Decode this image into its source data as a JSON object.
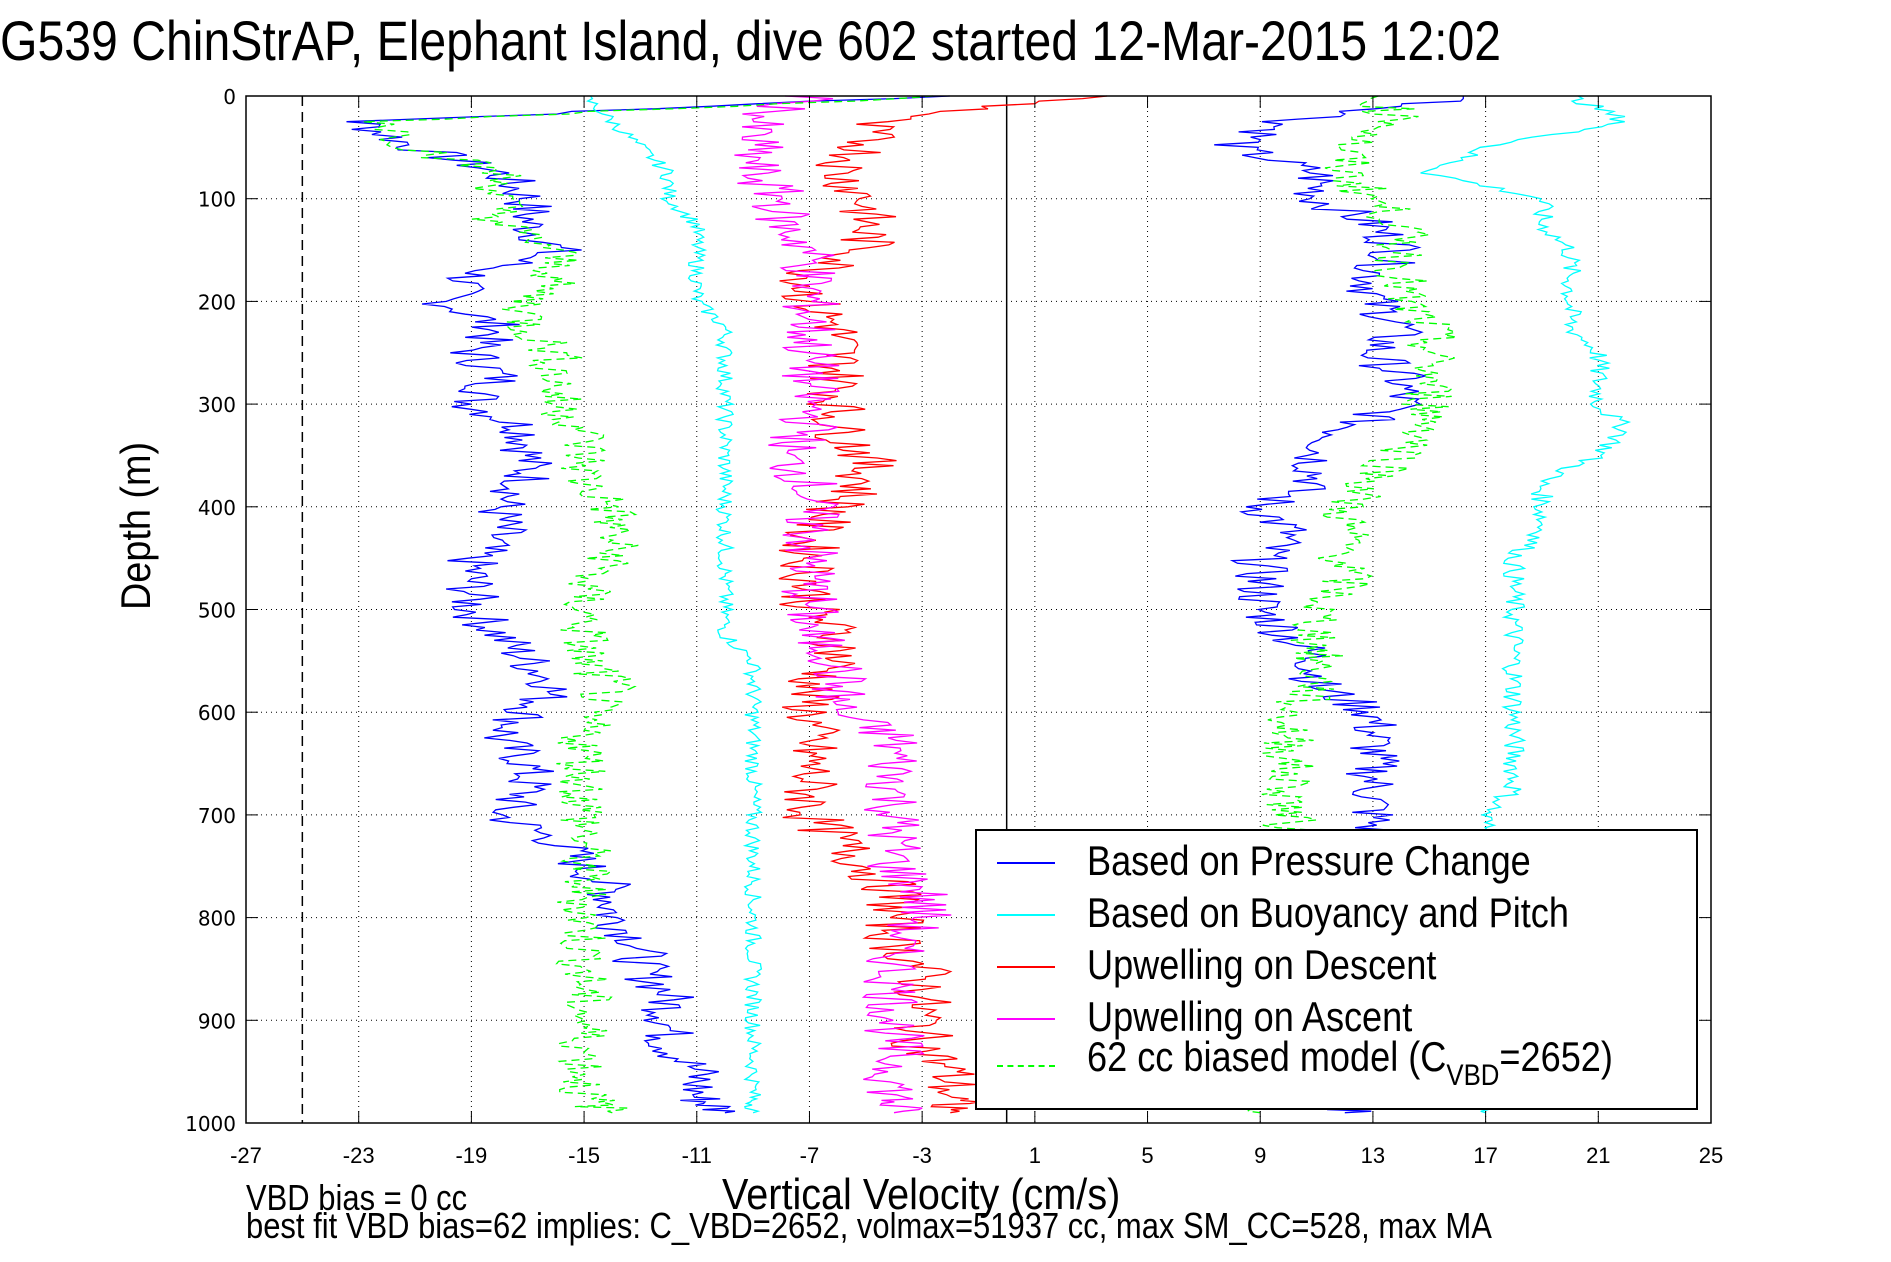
{
  "chart_data": {
    "type": "line",
    "title": "G539 ChinStrAP, Elephant Island, dive 602 started 12-Mar-2015 12:02",
    "xlabel": "Vertical Velocity (cm/s)",
    "ylabel": "Depth (m)",
    "xlim": [
      -27,
      25
    ],
    "ylim": [
      0,
      1000
    ],
    "y_reversed": true,
    "grid": true,
    "xticks": [
      -27,
      -23,
      -19,
      -15,
      -11,
      -7,
      -3,
      1,
      5,
      9,
      13,
      17,
      21,
      25
    ],
    "yticks": [
      0,
      100,
      200,
      300,
      400,
      500,
      600,
      700,
      800,
      900,
      1000
    ],
    "reference_lines": [
      {
        "name": "zero-velocity",
        "x": 0,
        "style": "solid"
      },
      {
        "name": "target-velocity",
        "x": -25,
        "style": "dashed"
      }
    ],
    "legend_position": "bottom-right",
    "depth": [
      0,
      25,
      50,
      75,
      100,
      125,
      150,
      175,
      200,
      225,
      250,
      275,
      300,
      325,
      350,
      375,
      400,
      425,
      450,
      475,
      500,
      525,
      550,
      575,
      600,
      625,
      650,
      675,
      700,
      725,
      750,
      775,
      800,
      825,
      850,
      875,
      900,
      925,
      950,
      975,
      990
    ],
    "series": [
      {
        "name": "Based on Pressure Change",
        "color": "#0000ff",
        "style": "solid",
        "descent": [
          -2,
          -23,
          -21,
          -18,
          -17,
          -17,
          -16,
          -19,
          -20,
          -18,
          -19,
          -18,
          -19,
          -17,
          -17,
          -17,
          -18,
          -18,
          -19,
          -19,
          -19,
          -18,
          -17,
          -16,
          -17,
          -18,
          -17,
          -17,
          -18,
          -16,
          -15,
          -14,
          -14,
          -13,
          -13,
          -12,
          -12,
          -12,
          -11,
          -11,
          -10
        ],
        "ascent": [
          17,
          10,
          8,
          11,
          11,
          13,
          14,
          13,
          13,
          14,
          13,
          14,
          14,
          12,
          11,
          11,
          9,
          10,
          9,
          9,
          9,
          10,
          11,
          11,
          13,
          13,
          13,
          13,
          13,
          13,
          13,
          13,
          13,
          13,
          13,
          13,
          13,
          13,
          13,
          13,
          12
        ]
      },
      {
        "name": "Based on Buoyancy and Pitch",
        "color": "#00ffff",
        "style": "solid",
        "descent": [
          -15,
          -14,
          -13,
          -12,
          -12,
          -11,
          -11,
          -11,
          -11,
          -10,
          -10,
          -10,
          -10,
          -10,
          -10,
          -10,
          -10,
          -10,
          -10,
          -10,
          -10,
          -10,
          -9,
          -9,
          -9,
          -9,
          -9,
          -9,
          -9,
          -9,
          -9,
          -9,
          -9,
          -9,
          -9,
          -9,
          -9,
          -9,
          -9,
          -9,
          -9
        ],
        "ascent": [
          20,
          22,
          17,
          15,
          19,
          19,
          20,
          20,
          20,
          20,
          21,
          21,
          21,
          22,
          21,
          19,
          19,
          19,
          18,
          18,
          18,
          18,
          18,
          18,
          18,
          18,
          18,
          18,
          17,
          17,
          17,
          17,
          17,
          17,
          17,
          17,
          17,
          17,
          17,
          17,
          17
        ]
      },
      {
        "name": "Upwelling on Descent",
        "color": "#ff0000",
        "style": "solid",
        "values": [
          3,
          -5,
          -5,
          -6,
          -5,
          -5,
          -5,
          -7,
          -7,
          -6,
          -6,
          -6,
          -6,
          -6,
          -5,
          -5,
          -6,
          -7,
          -7,
          -7,
          -7,
          -6,
          -6,
          -7,
          -7,
          -7,
          -7,
          -7,
          -7,
          -6,
          -5,
          -4,
          -4,
          -4,
          -3,
          -3,
          -3,
          -3,
          -2,
          -2,
          -2
        ]
      },
      {
        "name": "Upwelling on Ascent",
        "color": "#ff00ff",
        "style": "solid",
        "values": [
          -7,
          -9,
          -9,
          -9,
          -8,
          -8,
          -7,
          -7,
          -7,
          -7,
          -7,
          -7,
          -7,
          -7,
          -8,
          -7,
          -7,
          -7,
          -7,
          -7,
          -7,
          -7,
          -6,
          -6,
          -6,
          -4,
          -4,
          -4,
          -4,
          -4,
          -4,
          -3,
          -3,
          -4,
          -4,
          -4,
          -4,
          -4,
          -4,
          -4,
          -4
        ]
      },
      {
        "name": "62 cc biased model (C_VBD=2652)",
        "color": "#00ff00",
        "style": "dashed",
        "descent": [
          -2,
          -22,
          -21,
          -18,
          -18,
          -18,
          -16,
          -16,
          -17,
          -17,
          -16,
          -16,
          -16,
          -15,
          -15,
          -15,
          -14,
          -14,
          -14,
          -15,
          -15,
          -15,
          -15,
          -14,
          -15,
          -15,
          -15,
          -15,
          -15,
          -15,
          -15,
          -15,
          -15,
          -15,
          -15,
          -15,
          -15,
          -15,
          -15,
          -15,
          -14
        ],
        "ascent": [
          13,
          14,
          12,
          12,
          13,
          14,
          14,
          14,
          14,
          15,
          15,
          15,
          15,
          15,
          14,
          13,
          12,
          12,
          12,
          12,
          11,
          11,
          11,
          11,
          10,
          10,
          10,
          10,
          10,
          10,
          10,
          10,
          10,
          10,
          10,
          10,
          10,
          10,
          10,
          10,
          9
        ]
      }
    ],
    "legend": [
      {
        "label": "Based on Pressure Change",
        "color": "#0000ff",
        "style": "solid"
      },
      {
        "label": "Based on Buoyancy and Pitch",
        "color": "#00ffff",
        "style": "solid"
      },
      {
        "label": "Upwelling on Descent",
        "color": "#ff0000",
        "style": "solid"
      },
      {
        "label": "Upwelling on Ascent",
        "color": "#ff00ff",
        "style": "solid"
      },
      {
        "label_main": "62 cc biased model (C",
        "label_sub": "VBD",
        "label_end": "=2652)",
        "color": "#00ff00",
        "style": "dashed"
      }
    ]
  },
  "notes": {
    "line1": "VBD bias = 0 cc",
    "line2": "best fit VBD bias=62 implies: C_VBD=2652, volmax=51937 cc, max SM_CC=528, max MA"
  }
}
